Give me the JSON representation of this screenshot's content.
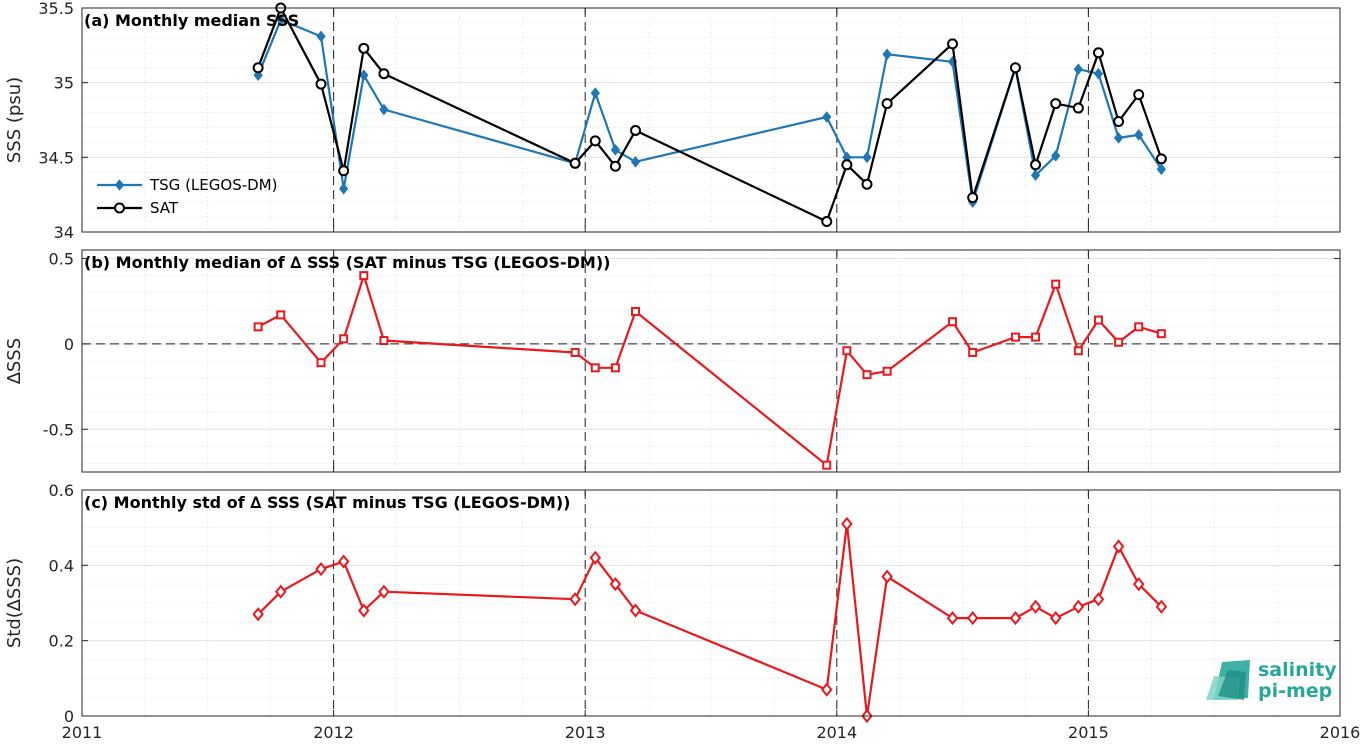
{
  "chart_data": [
    {
      "type": "line",
      "title": "(a) Monthly median SSS",
      "ylabel": "SSS (psu)",
      "xlim": [
        2011,
        2016
      ],
      "ylim": [
        34,
        35.5
      ],
      "xticks": [
        2011,
        2012,
        2013,
        2014,
        2015,
        2016
      ],
      "yticks": [
        34,
        34.5,
        35,
        35.5
      ],
      "grid": true,
      "legend_location": "left",
      "series": [
        {
          "name": "TSG (LEGOS-DM)",
          "color": "#1f77b4",
          "marker": "diamond",
          "x": [
            2011.7,
            2011.79,
            2011.95,
            2012.04,
            2012.12,
            2012.2,
            2012.96,
            2013.04,
            2013.12,
            2013.2,
            2013.96,
            2014.04,
            2014.12,
            2014.2,
            2014.46,
            2014.54,
            2014.71,
            2014.79,
            2014.87,
            2014.96,
            2015.04,
            2015.12,
            2015.2,
            2015.29
          ],
          "y": [
            35.05,
            35.42,
            35.31,
            34.29,
            35.05,
            34.82,
            34.46,
            34.93,
            34.55,
            34.47,
            34.77,
            34.5,
            34.5,
            35.19,
            35.14,
            34.2,
            35.1,
            34.38,
            34.51,
            35.09,
            35.06,
            34.63,
            34.65,
            34.42
          ]
        },
        {
          "name": "SAT",
          "color": "#000000",
          "marker": "circle",
          "x": [
            2011.7,
            2011.79,
            2011.95,
            2012.04,
            2012.12,
            2012.2,
            2012.96,
            2013.04,
            2013.12,
            2013.2,
            2013.96,
            2014.04,
            2014.12,
            2014.2,
            2014.46,
            2014.54,
            2014.71,
            2014.79,
            2014.87,
            2014.96,
            2015.04,
            2015.12,
            2015.2,
            2015.29
          ],
          "y": [
            35.1,
            35.5,
            34.99,
            34.41,
            35.23,
            35.06,
            34.46,
            34.61,
            34.44,
            34.68,
            34.07,
            34.45,
            34.32,
            34.86,
            35.26,
            34.23,
            35.1,
            34.45,
            34.86,
            34.83,
            35.2,
            34.74,
            34.92,
            34.49
          ]
        }
      ]
    },
    {
      "type": "line",
      "title": "(b) Monthly median of ∆ SSS (SAT minus TSG (LEGOS-DM))",
      "ylabel": "∆SSS",
      "xlim": [
        2011,
        2016
      ],
      "ylim": [
        -0.75,
        0.55
      ],
      "xticks": [
        2011,
        2012,
        2013,
        2014,
        2015,
        2016
      ],
      "yticks": [
        -0.5,
        0,
        0.5
      ],
      "grid": true,
      "series": [
        {
          "color": "#e8191d",
          "marker": "square",
          "x": [
            2011.7,
            2011.79,
            2011.95,
            2012.04,
            2012.12,
            2012.2,
            2012.96,
            2013.04,
            2013.12,
            2013.2,
            2013.96,
            2014.04,
            2014.12,
            2014.2,
            2014.46,
            2014.54,
            2014.71,
            2014.79,
            2014.87,
            2014.96,
            2015.04,
            2015.12,
            2015.2,
            2015.29
          ],
          "y": [
            0.1,
            0.17,
            -0.11,
            0.03,
            0.4,
            0.02,
            -0.05,
            -0.14,
            -0.14,
            0.19,
            -0.71,
            -0.04,
            -0.18,
            -0.16,
            0.13,
            -0.05,
            0.04,
            0.04,
            0.35,
            -0.04,
            0.14,
            0.01,
            0.1,
            0.06
          ]
        }
      ]
    },
    {
      "type": "line",
      "title": "(c) Monthly std of ∆ SSS (SAT minus TSG (LEGOS-DM))",
      "ylabel": "Std(∆SSS)",
      "xlim": [
        2011,
        2016
      ],
      "ylim": [
        0,
        0.6
      ],
      "xticks": [
        2011,
        2012,
        2013,
        2014,
        2015,
        2016
      ],
      "yticks": [
        0,
        0.2,
        0.4,
        0.6
      ],
      "grid": true,
      "series": [
        {
          "color": "#e8191d",
          "marker": "diamond",
          "x": [
            2011.7,
            2011.79,
            2011.95,
            2012.04,
            2012.12,
            2012.2,
            2012.96,
            2013.04,
            2013.12,
            2013.2,
            2013.96,
            2014.04,
            2014.12,
            2014.2,
            2014.46,
            2014.54,
            2014.71,
            2014.79,
            2014.87,
            2014.96,
            2015.04,
            2015.12,
            2015.2,
            2015.29
          ],
          "y": [
            0.27,
            0.33,
            0.39,
            0.41,
            0.28,
            0.33,
            0.31,
            0.42,
            0.35,
            0.28,
            0.07,
            0.51,
            0.0,
            0.37,
            0.26,
            0.26,
            0.26,
            0.29,
            0.26,
            0.29,
            0.31,
            0.45,
            0.35,
            0.29
          ]
        }
      ]
    }
  ],
  "logo": {
    "line1": "salinity",
    "line2": "pi-mep",
    "color": "#2aa79b"
  }
}
